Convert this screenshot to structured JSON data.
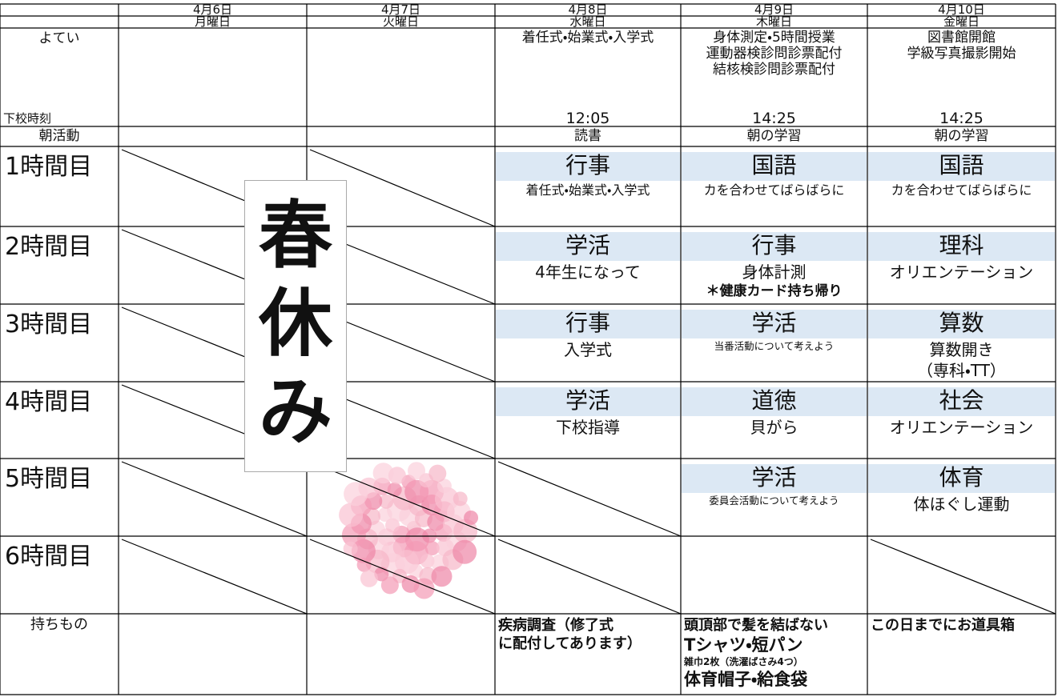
{
  "header": {
    "dates": [
      "4月6日",
      "4月7日",
      "4月8日",
      "4月9日",
      "4月10日"
    ],
    "weekdays": [
      "月曜日",
      "火曜日",
      "水曜日",
      "木曜日",
      "金曜日"
    ]
  },
  "schedule": {
    "yotei_label": "よてい",
    "dismissal_label": "下校時刻",
    "events": [
      null,
      null,
      [
        "着任式・始業式・入学式"
      ],
      [
        "身体測定・5時間授業",
        "運動器検診問診票配付",
        "結核検診問診票配付"
      ],
      [
        "図書館開館",
        "学級写真撮影開始"
      ]
    ],
    "dismissal": [
      null,
      null,
      "12:05",
      "14:25",
      "14:25"
    ],
    "morning_label": "朝活動",
    "morning": [
      null,
      null,
      "読書",
      "朝の学習",
      "朝の学習"
    ],
    "periods": [
      {
        "label": "1時間目",
        "cells": [
          {
            "struck": true
          },
          {
            "struck": true
          },
          {
            "subject": "行事",
            "note": [
              {
                "text": "着任式・始業式・入学式",
                "style": "small"
              }
            ]
          },
          {
            "subject": "国語",
            "note": [
              {
                "text": "カを合わせてばらばらに",
                "style": "small"
              }
            ]
          },
          {
            "subject": "国語",
            "note": [
              {
                "text": "カを合わせてばらばらに",
                "style": "small"
              }
            ]
          }
        ]
      },
      {
        "label": "2時間目",
        "cells": [
          {
            "struck": true
          },
          {
            "struck": true
          },
          {
            "subject": "学活",
            "note": [
              {
                "text": "4年生になって"
              }
            ]
          },
          {
            "subject": "行事",
            "note": [
              {
                "text": "身体計測"
              },
              {
                "text": "＊健康カード持ち帰り",
                "style": "bold"
              }
            ]
          },
          {
            "subject": "理科",
            "note": [
              {
                "text": "オリエンテーション"
              }
            ]
          }
        ]
      },
      {
        "label": "3時間目",
        "cells": [
          {
            "struck": true
          },
          {
            "struck": true
          },
          {
            "subject": "行事",
            "note": [
              {
                "text": "入学式"
              }
            ]
          },
          {
            "subject": "学活",
            "note": [
              {
                "text": "当番活動について考えよう",
                "style": "tiny"
              }
            ]
          },
          {
            "subject": "算数",
            "note": [
              {
                "text": "算数開き"
              },
              {
                "text": "（専科・TT）"
              }
            ]
          }
        ]
      },
      {
        "label": "4時間目",
        "cells": [
          {
            "struck": true
          },
          {
            "struck": true
          },
          {
            "subject": "学活",
            "note": [
              {
                "text": "下校指導"
              }
            ]
          },
          {
            "subject": "道徳",
            "note": [
              {
                "text": "貝がら"
              }
            ]
          },
          {
            "subject": "社会",
            "note": [
              {
                "text": "オリエンテーション"
              }
            ]
          }
        ]
      },
      {
        "label": "5時間目",
        "cells": [
          {
            "struck": true
          },
          {
            "struck": true
          },
          {
            "struck": true
          },
          {
            "subject": "学活",
            "note": [
              {
                "text": "委員会活動について考えよう",
                "style": "tiny"
              }
            ]
          },
          {
            "subject": "体育",
            "note": [
              {
                "text": "体ほぐし運動"
              }
            ]
          }
        ]
      },
      {
        "label": "6時間目",
        "cells": [
          {
            "struck": true
          },
          {
            "struck": true
          },
          {
            "struck": true
          },
          null,
          {
            "struck": true
          }
        ]
      }
    ],
    "items_label": "持ちもの",
    "items": [
      null,
      null,
      [
        {
          "text": "疾病調査（修了式"
        },
        {
          "text": "に配付してあります）"
        }
      ],
      [
        {
          "text": "頭頂部で髪を結ばない"
        },
        {
          "text": "Tシャツ・短パン",
          "style": "large"
        },
        {
          "text": "雑巾2枚（洗濯ばさみ4つ）",
          "style": "tiny"
        },
        {
          "text": "体育帽子・給食袋",
          "style": "large"
        }
      ],
      [
        {
          "text": "この日までにお道具箱"
        }
      ]
    ]
  },
  "banner": {
    "text": [
      "春",
      "休",
      "み"
    ]
  }
}
